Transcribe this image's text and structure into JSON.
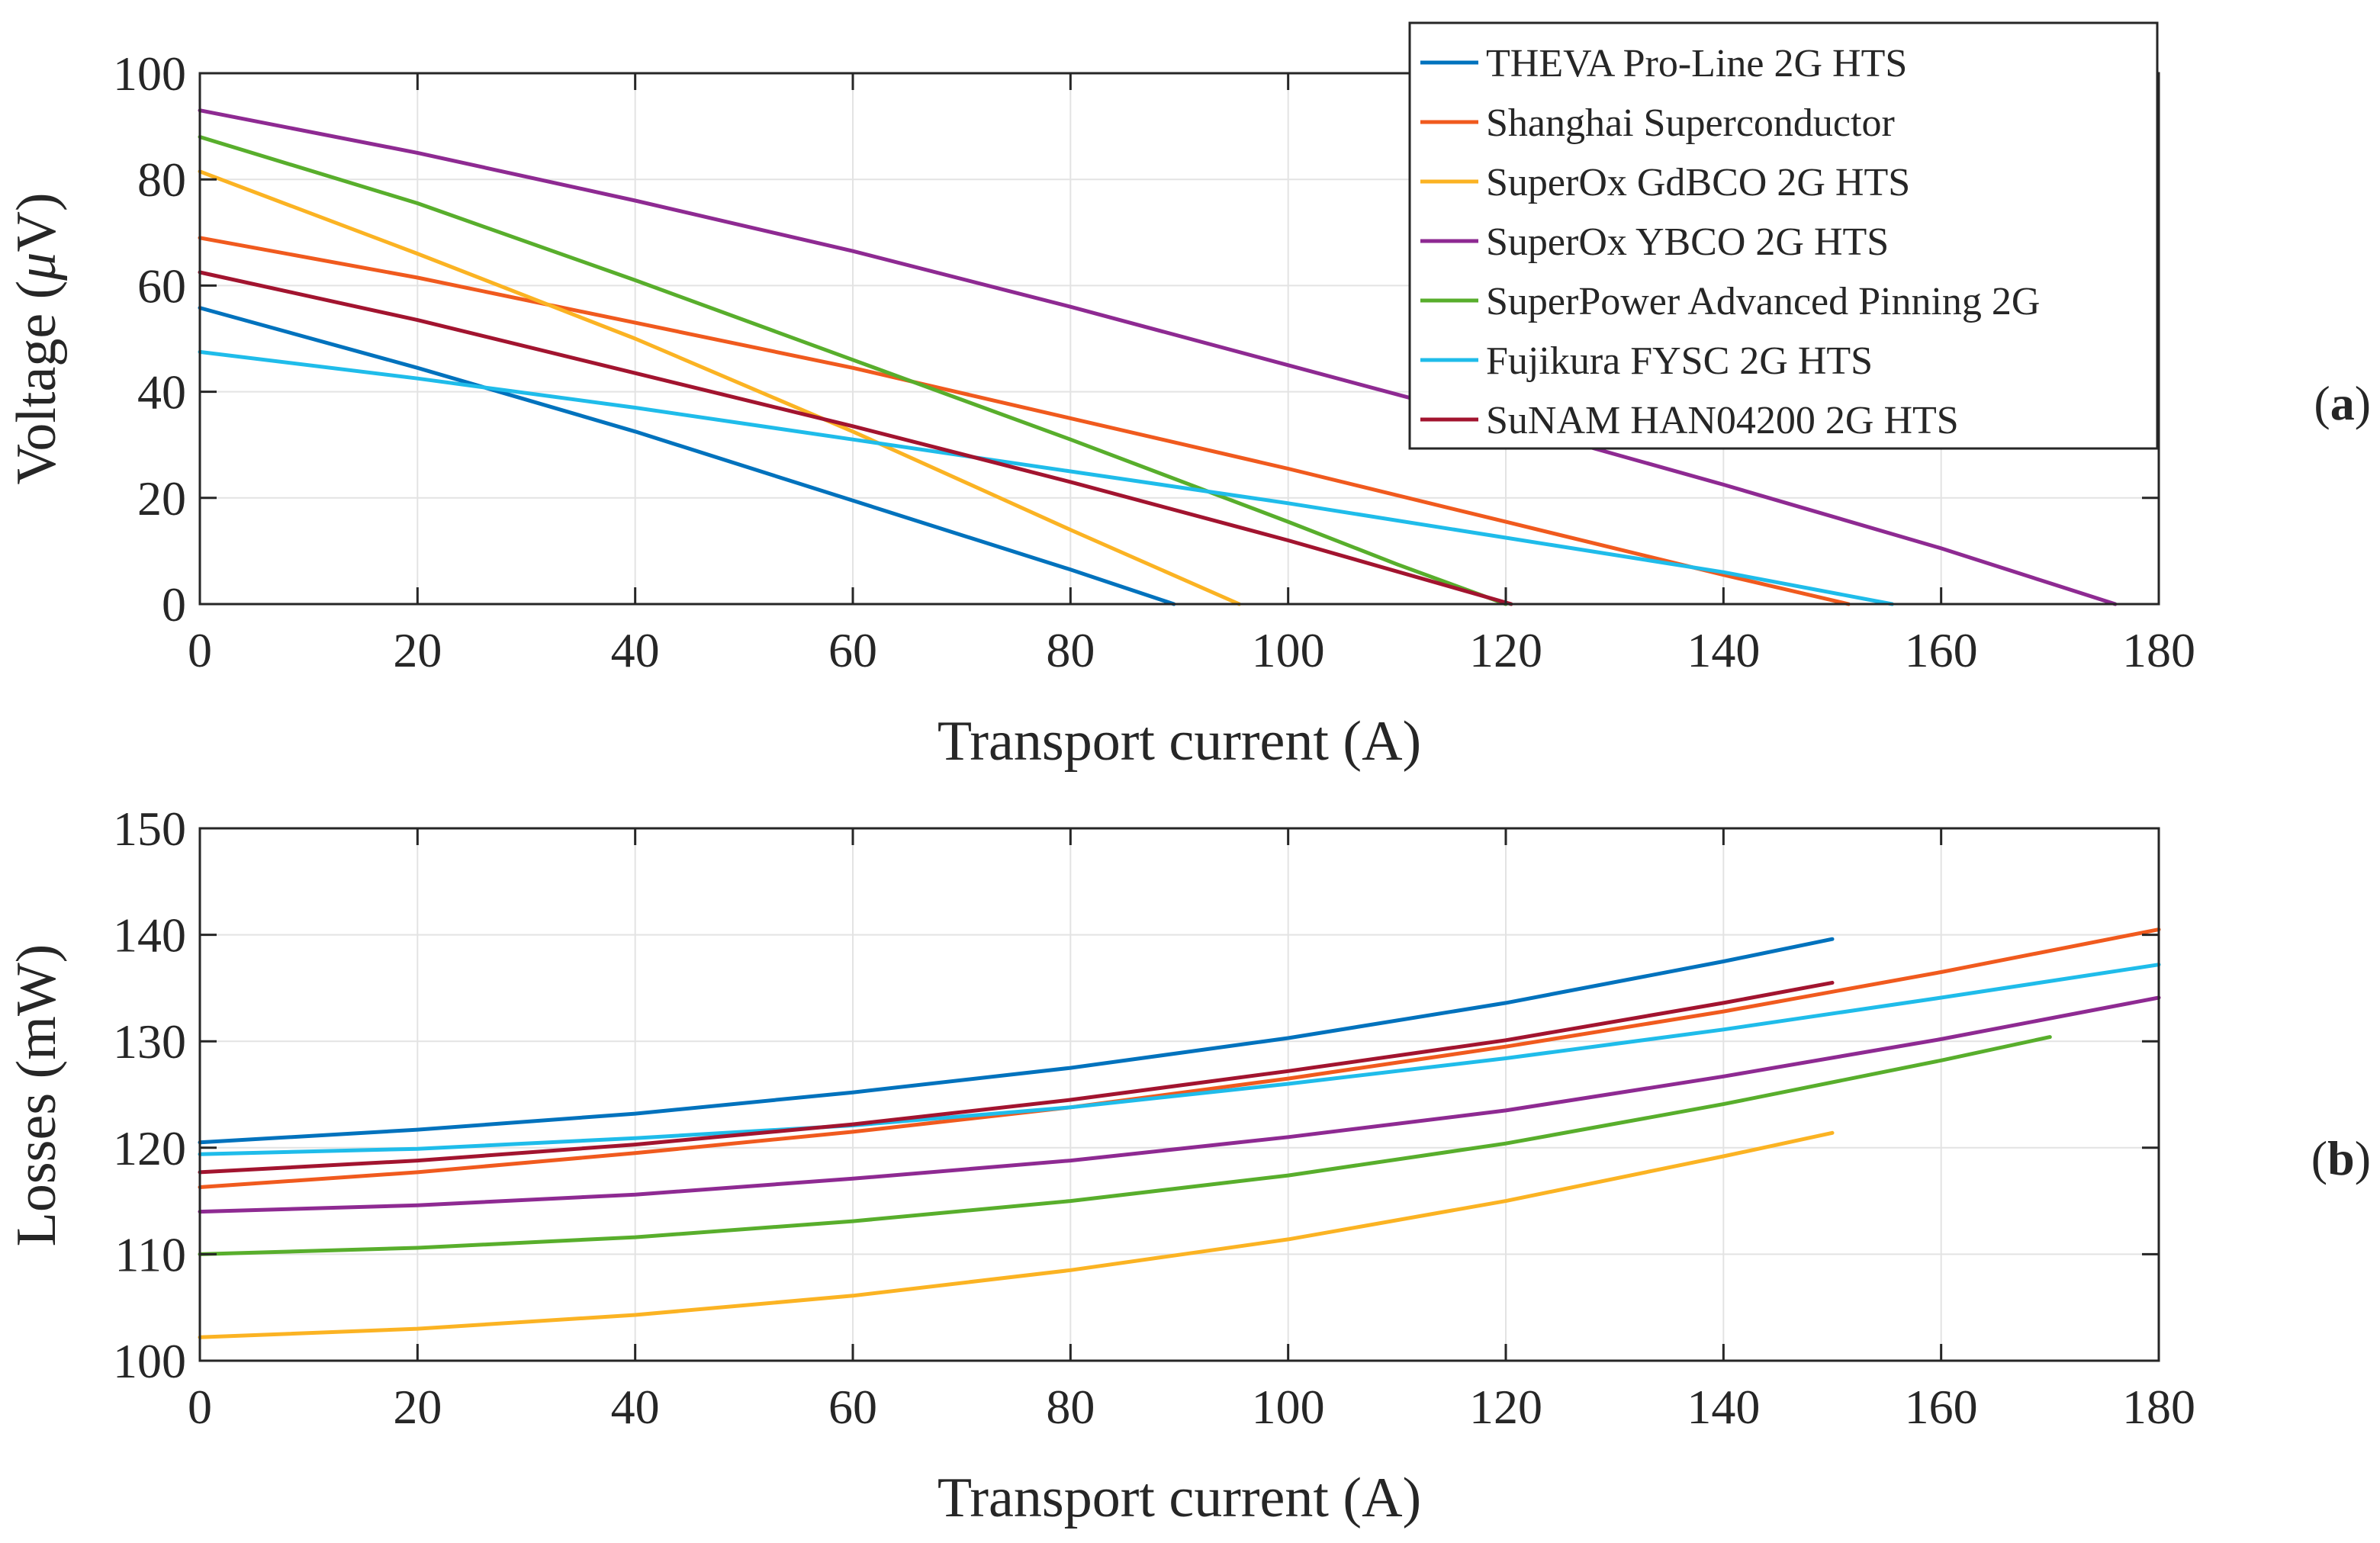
{
  "panels": {
    "a": {
      "label_open": "(",
      "label_letter": "a",
      "label_close": ")"
    },
    "b": {
      "label_open": "(",
      "label_letter": "b",
      "label_close": ")"
    }
  },
  "legend": {
    "entries": [
      "THEVA Pro-Line 2G HTS",
      "Shanghai Superconductor",
      "SuperOx GdBCO 2G HTS",
      "SuperOx YBCO 2G HTS",
      "SuperPower Advanced Pinning 2G",
      "Fujikura FYSC 2G HTS",
      "SuNAM HAN04200 2G HTS"
    ]
  },
  "colors": {
    "THEVA Pro-Line 2G HTS": "#0072BD",
    "Shanghai Superconductor": "#F05A1E",
    "SuperOx GdBCO 2G HTS": "#FBB323",
    "SuperOx YBCO 2G HTS": "#8E2A92",
    "SuperPower Advanced Pinning 2G": "#58AE2C",
    "Fujikura FYSC 2G HTS": "#1FBCEA",
    "SuNAM HAN04200 2G HTS": "#A2142F",
    "grid": "#e3e3e3",
    "axis": "#262626"
  },
  "chart_data": [
    {
      "type": "line",
      "panel": "a",
      "title": "",
      "xlabel": "Transport current (A)",
      "ylabel_prefix": "Voltage (",
      "ylabel_unit_symbol": "μ",
      "ylabel_suffix": "V)",
      "xlim": [
        0,
        180
      ],
      "ylim": [
        0,
        100
      ],
      "xticks": [
        0,
        20,
        40,
        60,
        80,
        100,
        120,
        140,
        160,
        180
      ],
      "yticks": [
        0,
        20,
        40,
        60,
        80,
        100
      ],
      "grid": true,
      "legend_position": "top-right",
      "series": [
        {
          "name": "THEVA Pro-Line 2G HTS",
          "x": [
            0,
            20,
            40,
            60,
            80,
            89.5
          ],
          "y": [
            55.8,
            44.5,
            32.5,
            19.5,
            6.5,
            0
          ]
        },
        {
          "name": "Shanghai Superconductor",
          "x": [
            0,
            20,
            40,
            60,
            80,
            100,
            120,
            140,
            151.5
          ],
          "y": [
            69,
            61.5,
            53,
            44.5,
            35,
            25.5,
            15.5,
            5.5,
            0
          ]
        },
        {
          "name": "SuperOx GdBCO 2G HTS",
          "x": [
            0,
            20,
            40,
            60,
            80,
            95.5
          ],
          "y": [
            81.5,
            66,
            50,
            32.5,
            14,
            0
          ]
        },
        {
          "name": "SuperOx YBCO 2G HTS",
          "x": [
            0,
            20,
            40,
            60,
            80,
            100,
            120,
            140,
            160,
            176
          ],
          "y": [
            93,
            85,
            76,
            66.5,
            56,
            45,
            34,
            22.5,
            10.5,
            0
          ]
        },
        {
          "name": "SuperPower Advanced Pinning 2G",
          "x": [
            0,
            20,
            40,
            60,
            80,
            100,
            110,
            120
          ],
          "y": [
            88,
            75.5,
            61,
            46,
            31,
            15.5,
            7.5,
            0
          ]
        },
        {
          "name": "Fujikura FYSC 2G HTS",
          "x": [
            0,
            20,
            40,
            60,
            80,
            100,
            120,
            140,
            155.5
          ],
          "y": [
            47.5,
            42.5,
            37,
            31,
            25,
            19,
            12.5,
            6,
            0
          ]
        },
        {
          "name": "SuNAM HAN04200 2G HTS",
          "x": [
            0,
            20,
            40,
            60,
            80,
            100,
            120.5
          ],
          "y": [
            62.5,
            53.5,
            43.5,
            33.5,
            23,
            12,
            0
          ]
        }
      ]
    },
    {
      "type": "line",
      "panel": "b",
      "title": "",
      "xlabel": "Transport current (A)",
      "ylabel": "Losses (mW)",
      "xlim": [
        0,
        180
      ],
      "ylim": [
        100,
        150
      ],
      "xticks": [
        0,
        20,
        40,
        60,
        80,
        100,
        120,
        140,
        160,
        180
      ],
      "yticks": [
        100,
        110,
        120,
        130,
        140,
        150
      ],
      "grid": true,
      "series": [
        {
          "name": "THEVA Pro-Line 2G HTS",
          "x": [
            0,
            20,
            40,
            60,
            80,
            100,
            120,
            140,
            150
          ],
          "y": [
            120.5,
            121.7,
            123.2,
            125.2,
            127.5,
            130.3,
            133.6,
            137.5,
            139.6
          ]
        },
        {
          "name": "Shanghai Superconductor",
          "x": [
            0,
            20,
            40,
            60,
            80,
            100,
            120,
            140,
            160,
            180
          ],
          "y": [
            116.3,
            117.7,
            119.5,
            121.5,
            123.8,
            126.5,
            129.5,
            132.8,
            136.5,
            140.5
          ]
        },
        {
          "name": "SuperOx GdBCO 2G HTS",
          "x": [
            0,
            20,
            40,
            60,
            80,
            100,
            120,
            140,
            150
          ],
          "y": [
            102.2,
            103,
            104.3,
            106.1,
            108.5,
            111.4,
            115,
            119.2,
            121.4
          ]
        },
        {
          "name": "SuperOx YBCO 2G HTS",
          "x": [
            0,
            20,
            40,
            60,
            80,
            100,
            120,
            140,
            160,
            180
          ],
          "y": [
            114,
            114.6,
            115.6,
            117.1,
            118.8,
            121,
            123.5,
            126.7,
            130.2,
            134.1
          ]
        },
        {
          "name": "SuperPower Advanced Pinning 2G",
          "x": [
            0,
            20,
            40,
            60,
            80,
            100,
            120,
            140,
            160,
            170
          ],
          "y": [
            110,
            110.6,
            111.6,
            113.1,
            115,
            117.4,
            120.4,
            124.1,
            128.2,
            130.4
          ]
        },
        {
          "name": "Fujikura FYSC 2G HTS",
          "x": [
            0,
            20,
            40,
            60,
            80,
            100,
            120,
            140,
            160,
            180
          ],
          "y": [
            119.4,
            119.9,
            120.9,
            122.1,
            123.8,
            126,
            128.4,
            131.1,
            134.1,
            137.2
          ]
        },
        {
          "name": "SuNAM HAN04200 2G HTS",
          "x": [
            0,
            20,
            40,
            60,
            80,
            100,
            120,
            140,
            150
          ],
          "y": [
            117.7,
            118.8,
            120.3,
            122.2,
            124.5,
            127.2,
            130.1,
            133.6,
            135.5
          ]
        }
      ]
    }
  ]
}
